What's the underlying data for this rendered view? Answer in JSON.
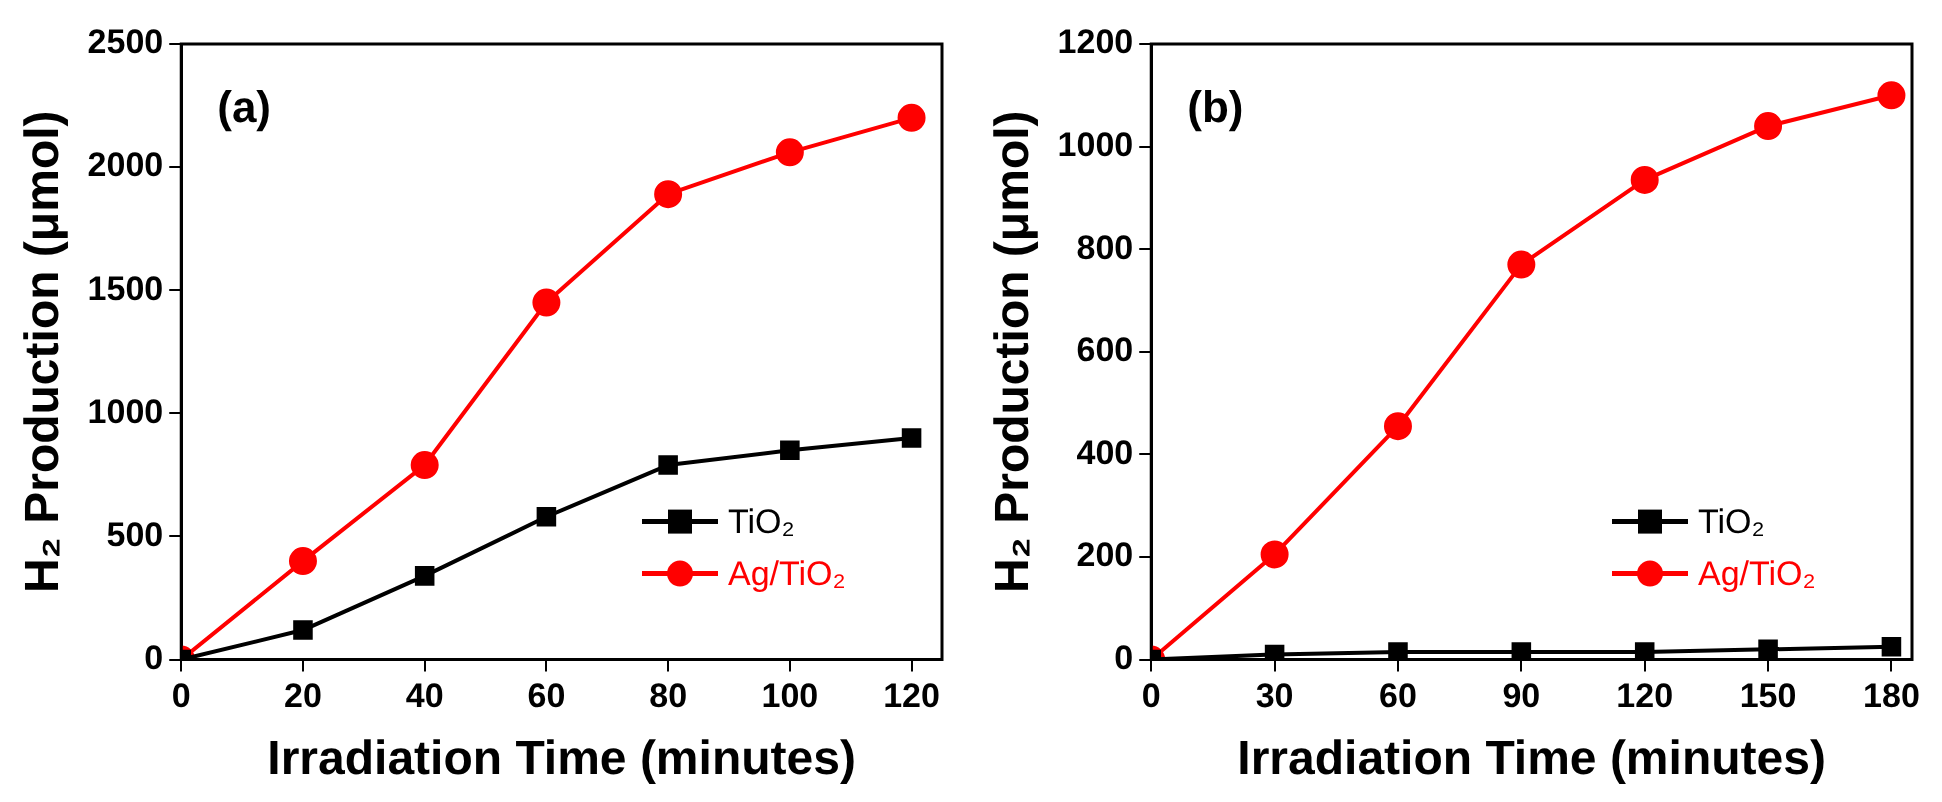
{
  "chart_data": [
    {
      "type": "line",
      "xlabel": "Irradiation Time (minutes)",
      "ylabel": "H₂ Production (μmol)",
      "annotations": [
        "(a)"
      ],
      "x": [
        0,
        20,
        40,
        60,
        80,
        100,
        120
      ],
      "xlim": [
        0,
        125
      ],
      "xticks": [
        0,
        20,
        40,
        60,
        80,
        100,
        120
      ],
      "ylim": [
        0,
        2500
      ],
      "yticks": [
        0,
        500,
        1000,
        1500,
        2000,
        2500
      ],
      "grid": false,
      "legend": "bottom right",
      "line_style": "solid",
      "series": [
        {
          "name": "TiO₂",
          "color": "#000000",
          "marker": "square",
          "values": [
            0,
            120,
            340,
            580,
            790,
            850,
            900
          ]
        },
        {
          "name": "Ag/TiO₂",
          "color": "#ff0000",
          "marker": "circle",
          "values": [
            0,
            400,
            790,
            1450,
            1890,
            2060,
            2200
          ]
        }
      ]
    },
    {
      "type": "line",
      "xlabel": "Irradiation Time (minutes)",
      "ylabel": "H₂ Production (μmol)",
      "annotations": [
        "(b)"
      ],
      "x": [
        0,
        30,
        60,
        90,
        120,
        150,
        180
      ],
      "xlim": [
        0,
        185
      ],
      "xticks": [
        0,
        30,
        60,
        90,
        120,
        150,
        180
      ],
      "ylim": [
        0,
        1200
      ],
      "yticks": [
        0,
        200,
        400,
        600,
        800,
        1000,
        1200
      ],
      "grid": false,
      "legend": "bottom right",
      "line_style": "solid",
      "series": [
        {
          "name": "TiO₂",
          "color": "#000000",
          "marker": "square",
          "values": [
            0,
            10,
            15,
            15,
            15,
            20,
            25
          ]
        },
        {
          "name": "Ag/TiO₂",
          "color": "#ff0000",
          "marker": "circle",
          "values": [
            0,
            205,
            455,
            770,
            935,
            1040,
            1100
          ]
        }
      ]
    }
  ]
}
